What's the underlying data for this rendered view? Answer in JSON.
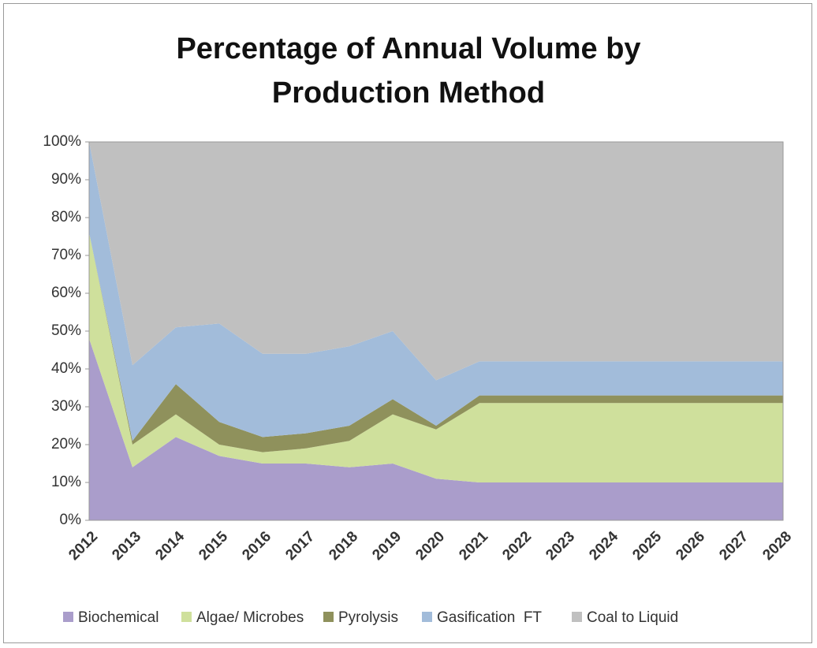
{
  "chart_data": {
    "type": "stacked-area",
    "title": "Percentage of Annual Volume by Production Method",
    "categories": [
      "2012",
      "2013",
      "2014",
      "2015",
      "2016",
      "2017",
      "2018",
      "2019",
      "2020",
      "2021",
      "2022",
      "2023",
      "2024",
      "2025",
      "2026",
      "2027",
      "2028"
    ],
    "series": [
      {
        "name": "Biochemical",
        "color": "#aa9dcb",
        "values": [
          48,
          14,
          22,
          17,
          15,
          15,
          14,
          15,
          11,
          10,
          10,
          10,
          10,
          10,
          10,
          10,
          10
        ]
      },
      {
        "name": "Algae/ Microbes",
        "color": "#cfe09c",
        "values": [
          28,
          6,
          6,
          3,
          3,
          4,
          7,
          13,
          13,
          21,
          21,
          21,
          21,
          21,
          21,
          21,
          21
        ]
      },
      {
        "name": "Pyrolysis",
        "color": "#8f915c",
        "values": [
          0,
          1,
          8,
          6,
          4,
          4,
          4,
          4,
          1,
          2,
          2,
          2,
          2,
          2,
          2,
          2,
          2
        ]
      },
      {
        "name": "Gasification  FT",
        "color": "#a2bcda",
        "values": [
          24,
          20,
          15,
          26,
          22,
          21,
          21,
          18,
          12,
          9,
          9,
          9,
          9,
          9,
          9,
          9,
          9
        ]
      },
      {
        "name": "Coal to Liquid",
        "color": "#c0c0c0",
        "values": [
          0,
          59,
          49,
          48,
          56,
          56,
          54,
          50,
          63,
          58,
          58,
          58,
          58,
          58,
          58,
          58,
          58
        ]
      }
    ],
    "ylim": [
      0,
      100
    ],
    "yticks": [
      {
        "value": 0,
        "label": "0%"
      },
      {
        "value": 10,
        "label": "10%"
      },
      {
        "value": 20,
        "label": "20%"
      },
      {
        "value": 30,
        "label": "30%"
      },
      {
        "value": 40,
        "label": "40%"
      },
      {
        "value": 50,
        "label": "50%"
      },
      {
        "value": 60,
        "label": "60%"
      },
      {
        "value": 70,
        "label": "70%"
      },
      {
        "value": 80,
        "label": "80%"
      },
      {
        "value": 90,
        "label": "90%"
      },
      {
        "value": 100,
        "label": "100%"
      }
    ],
    "legend": "bottom"
  }
}
